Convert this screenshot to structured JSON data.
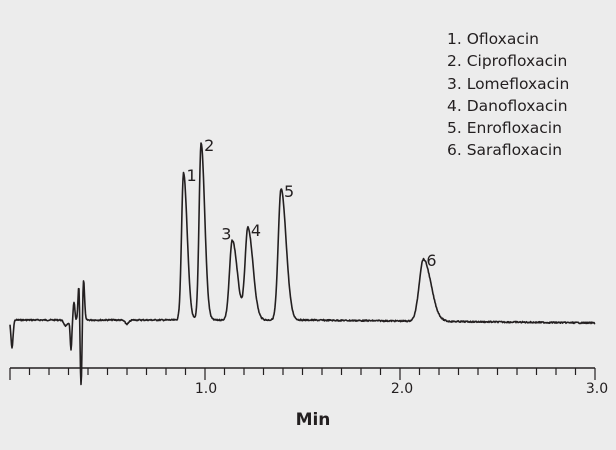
{
  "chart_data": {
    "type": "line",
    "title": "",
    "xlabel": "Min",
    "ylabel": "",
    "xlim": [
      0,
      3.0
    ],
    "x_ticks_major": [
      1.0,
      2.0,
      3.0
    ],
    "x_tick_labels": [
      "1.0",
      "2.0",
      "3.0"
    ],
    "x_minor_tick_step": 0.1,
    "grid": false,
    "legend_position": "top-right",
    "legend": [
      "1. Ofloxacin",
      "2. Ciprofloxacin",
      "3. Lomefloxacin",
      "4. Danofloxacin",
      "5. Enrofloxacin",
      "6. Sarafloxacin"
    ],
    "peaks": [
      {
        "label": "1",
        "compound": "Ofloxacin",
        "retention_time_min": 0.89,
        "relative_height": 0.83
      },
      {
        "label": "2",
        "compound": "Ciprofloxacin",
        "retention_time_min": 0.98,
        "relative_height": 1.0
      },
      {
        "label": "3",
        "compound": "Lomefloxacin",
        "retention_time_min": 1.14,
        "relative_height": 0.45
      },
      {
        "label": "4",
        "compound": "Danofloxacin",
        "retention_time_min": 1.22,
        "relative_height": 0.52
      },
      {
        "label": "5",
        "compound": "Enrofloxacin",
        "retention_time_min": 1.39,
        "relative_height": 0.74
      },
      {
        "label": "6",
        "compound": "Sarafloxacin",
        "retention_time_min": 2.12,
        "relative_height": 0.35
      }
    ],
    "system_peak_region_min": [
      0.3,
      0.37
    ],
    "line_color": "#231f20",
    "background_color": "#ececec"
  }
}
